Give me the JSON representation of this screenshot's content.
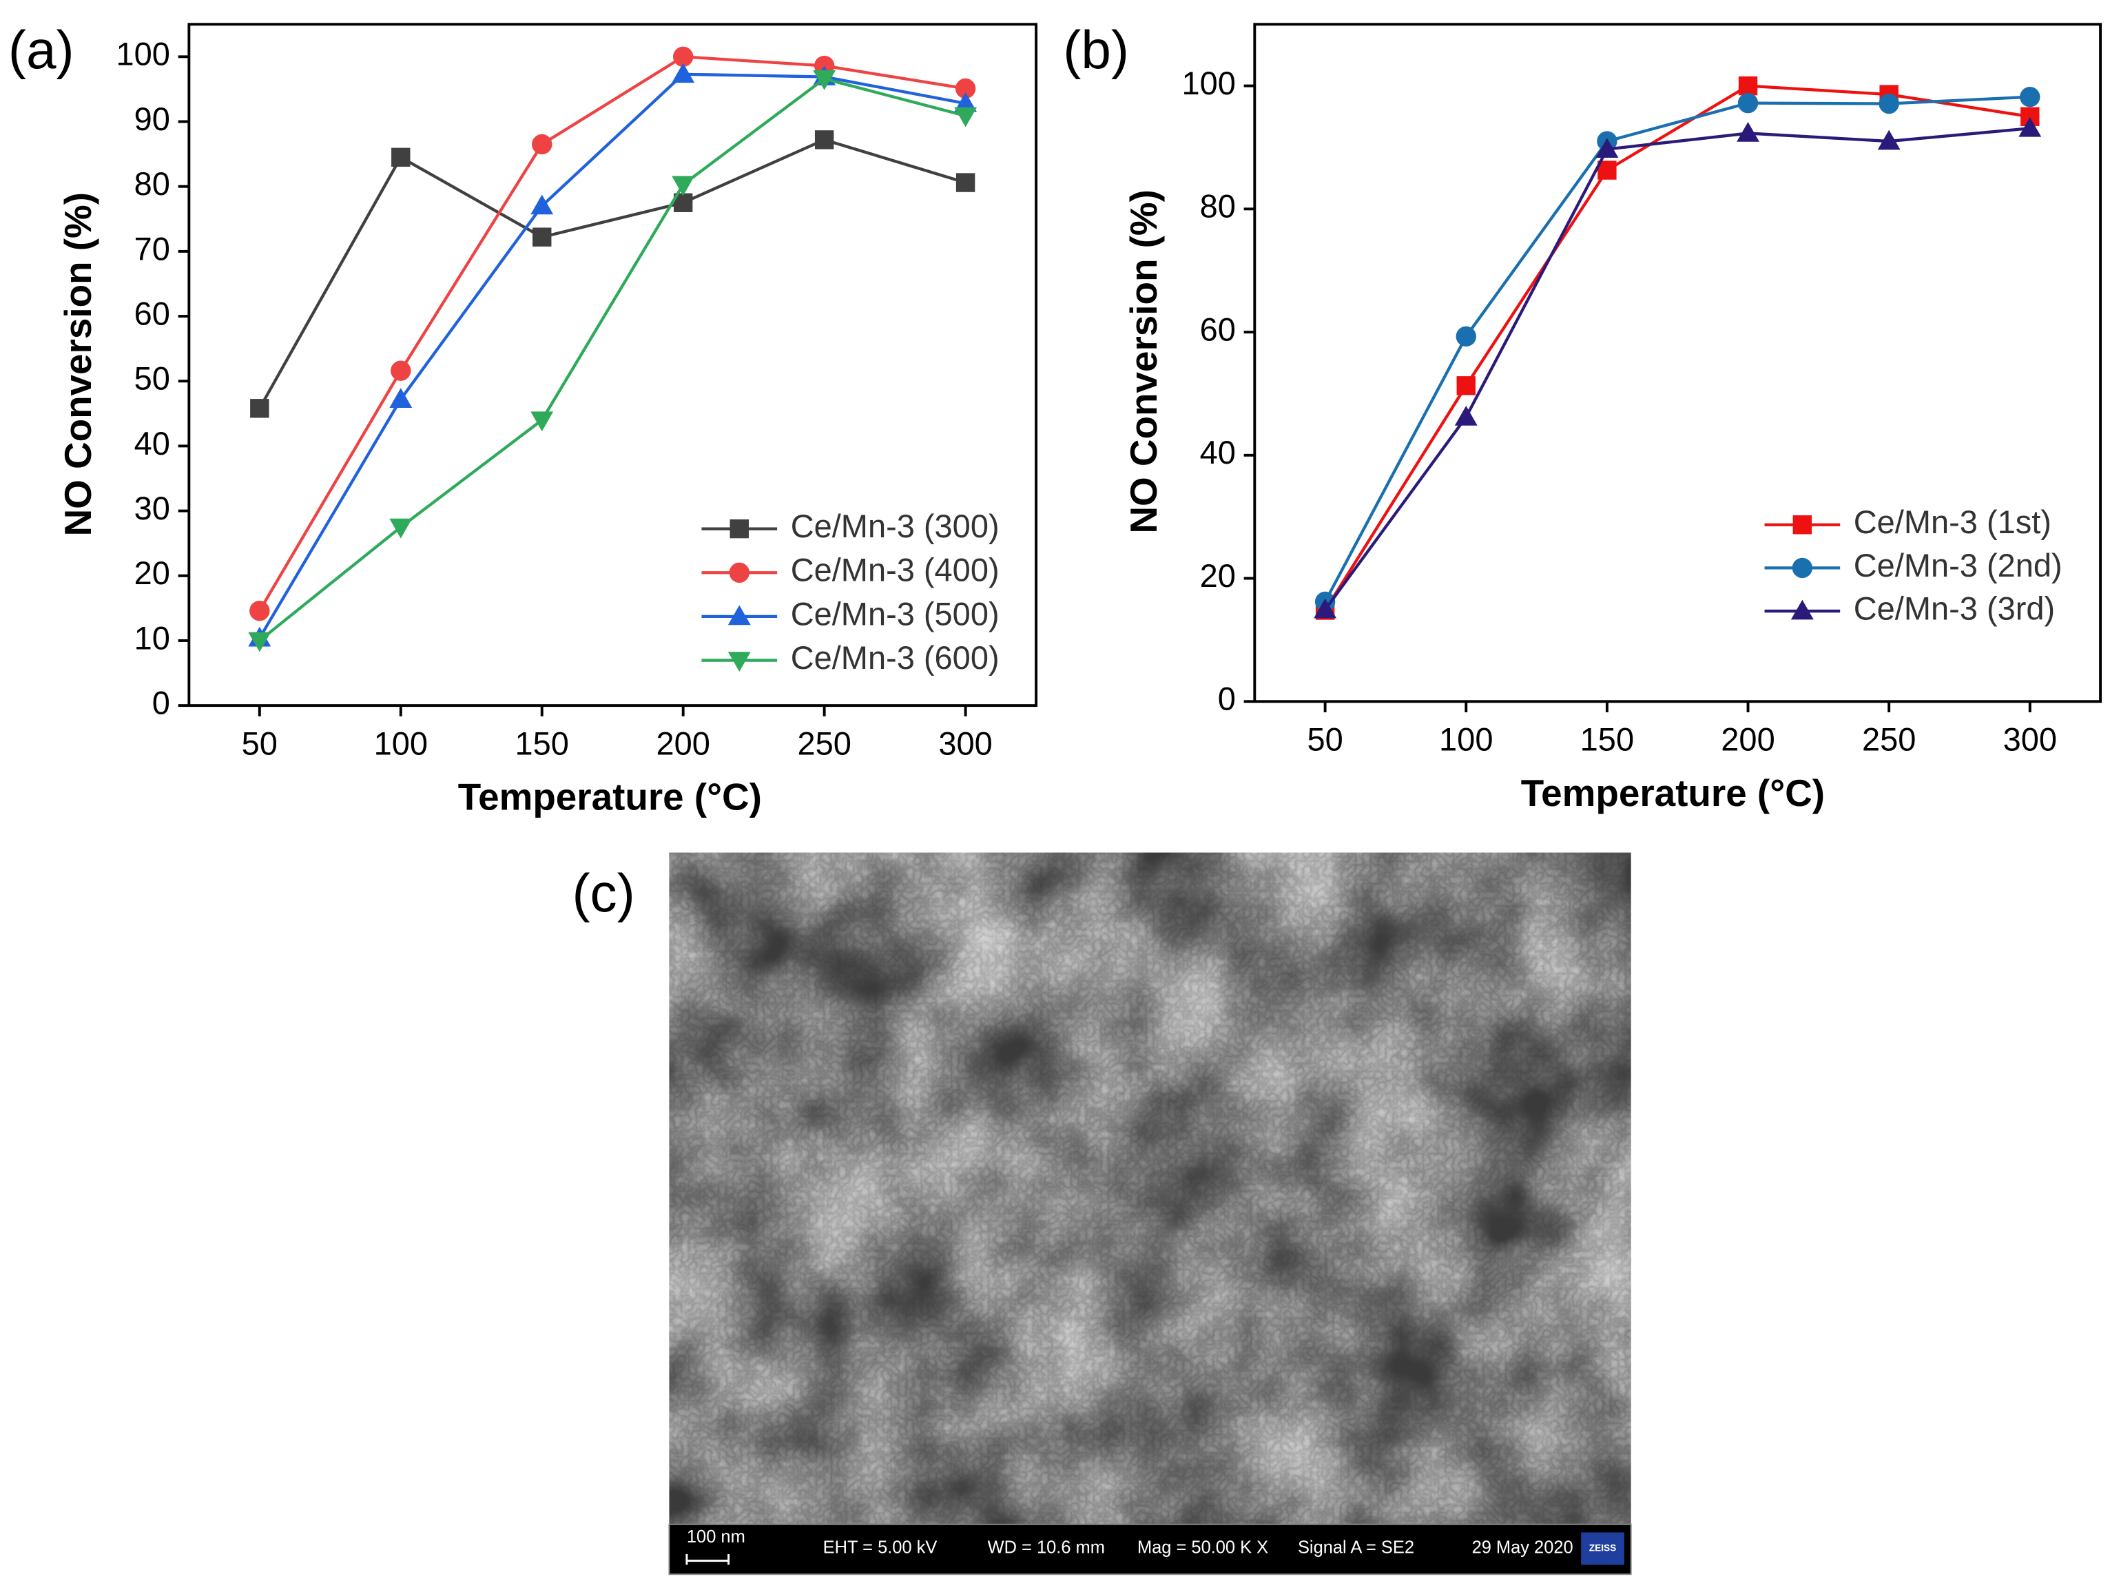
{
  "chart_data": [
    {
      "type": "line",
      "panel_label": "(a)",
      "xlabel": "Temperature (°C)",
      "ylabel": "NO Conversion (%)",
      "x": [
        50,
        100,
        150,
        200,
        250,
        300
      ],
      "xlim": [
        25,
        325
      ],
      "xticks": [
        50,
        100,
        150,
        200,
        250,
        300
      ],
      "ylim": [
        0,
        105
      ],
      "yticks": [
        0,
        10,
        20,
        30,
        40,
        50,
        60,
        70,
        80,
        90,
        100
      ],
      "legend": "lower right",
      "series": [
        {
          "name": "Ce/Mn-3 (300)",
          "color": "#404040",
          "marker": "square",
          "values": [
            45.8,
            84.5,
            72.2,
            77.5,
            87.2,
            80.6
          ]
        },
        {
          "name": "Ce/Mn-3 (400)",
          "color": "#ef4343",
          "marker": "circle",
          "values": [
            14.6,
            51.6,
            86.5,
            100,
            98.6,
            95.1
          ]
        },
        {
          "name": "Ce/Mn-3 (500)",
          "color": "#1f62dc",
          "marker": "triangle-up",
          "values": [
            10.4,
            47.2,
            77.0,
            97.3,
            96.9,
            92.8
          ]
        },
        {
          "name": "Ce/Mn-3 (600)",
          "color": "#2eaa5a",
          "marker": "triangle-down",
          "values": [
            10.0,
            27.5,
            44.0,
            80.3,
            96.6,
            90.9
          ]
        }
      ]
    },
    {
      "type": "line",
      "panel_label": "(b)",
      "xlabel": "Temperature (°C)",
      "ylabel": "NO Conversion (%)",
      "x": [
        50,
        100,
        150,
        200,
        250,
        300
      ],
      "xlim": [
        25,
        325
      ],
      "xticks": [
        50,
        100,
        150,
        200,
        250,
        300
      ],
      "ylim": [
        0,
        110
      ],
      "yticks": [
        0,
        20,
        40,
        60,
        80,
        100
      ],
      "legend": "lower right",
      "series": [
        {
          "name": "Ce/Mn-3 (1st)",
          "color": "#ee1111",
          "marker": "square",
          "values": [
            14.8,
            51.3,
            86.3,
            100,
            98.6,
            95.0
          ]
        },
        {
          "name": "Ce/Mn-3 (2nd)",
          "color": "#1a6faf",
          "marker": "circle",
          "values": [
            16.2,
            59.3,
            91.0,
            97.2,
            97.1,
            98.2
          ]
        },
        {
          "name": "Ce/Mn-3 (3rd)",
          "color": "#2b1a7a",
          "marker": "triangle-up",
          "values": [
            14.9,
            46.2,
            89.7,
            92.3,
            91.0,
            93.1
          ]
        }
      ]
    }
  ],
  "sem_image": {
    "panel_label": "(c)",
    "scale": "100 nm",
    "eht": "EHT =  5.00 kV",
    "wd": "WD = 10.6 mm",
    "mag": "Mag =  50.00 K X",
    "signal": "Signal A = SE2",
    "date": "29 May 2020",
    "brand": "ZEISS"
  }
}
